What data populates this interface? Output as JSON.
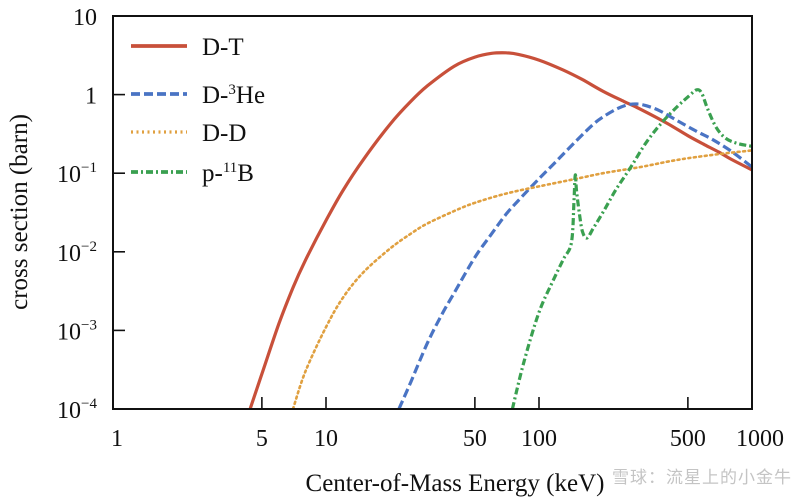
{
  "chart_data": {
    "type": "line",
    "title": "",
    "xlabel": "Center-of-Mass Energy (keV)",
    "ylabel": "cross section (barn)",
    "xscale": "log",
    "yscale": "log",
    "xlim": [
      1,
      1000
    ],
    "ylim": [
      0.0001,
      10
    ],
    "grid": false,
    "legend_position": "top-left",
    "x_ticks": [
      {
        "value": 1,
        "label": "1"
      },
      {
        "value": 5,
        "label": "5"
      },
      {
        "value": 10,
        "label": "10"
      },
      {
        "value": 50,
        "label": "50"
      },
      {
        "value": 100,
        "label": "100"
      },
      {
        "value": 500,
        "label": "500"
      },
      {
        "value": 1000,
        "label": "1000"
      }
    ],
    "y_ticks": [
      {
        "value": 10,
        "base": "10",
        "exp": ""
      },
      {
        "value": 1,
        "base": "1",
        "exp": ""
      },
      {
        "value": 0.1,
        "base": "10",
        "exp": "−1"
      },
      {
        "value": 0.01,
        "base": "10",
        "exp": "−2"
      },
      {
        "value": 0.001,
        "base": "10",
        "exp": "−3"
      },
      {
        "value": 0.0001,
        "base": "10",
        "exp": "−4"
      }
    ],
    "series": [
      {
        "name": "D-T",
        "label_main": "D-T",
        "label_sup": "",
        "label_tail": "",
        "color": "#c8503a",
        "dash": "solid",
        "points": [
          [
            4.4,
            0.0001
          ],
          [
            5,
            0.00028
          ],
          [
            6,
            0.0012
          ],
          [
            7,
            0.0035
          ],
          [
            8,
            0.0078
          ],
          [
            10,
            0.025
          ],
          [
            12,
            0.06
          ],
          [
            15,
            0.15
          ],
          [
            20,
            0.42
          ],
          [
            25,
            0.82
          ],
          [
            30,
            1.3
          ],
          [
            40,
            2.3
          ],
          [
            50,
            3.0
          ],
          [
            60,
            3.35
          ],
          [
            70,
            3.4
          ],
          [
            80,
            3.25
          ],
          [
            100,
            2.75
          ],
          [
            130,
            2.05
          ],
          [
            160,
            1.55
          ],
          [
            200,
            1.1
          ],
          [
            250,
            0.82
          ],
          [
            300,
            0.65
          ],
          [
            400,
            0.43
          ],
          [
            500,
            0.3
          ],
          [
            600,
            0.23
          ],
          [
            700,
            0.185
          ],
          [
            800,
            0.15
          ],
          [
            1000,
            0.11
          ]
        ]
      },
      {
        "name": "D-3He",
        "label_main": "D-",
        "label_sup": "3",
        "label_tail": "He",
        "color": "#4a74c4",
        "dash": "dashed",
        "points": [
          [
            22,
            0.0001
          ],
          [
            25,
            0.00022
          ],
          [
            30,
            0.0007
          ],
          [
            35,
            0.0016
          ],
          [
            40,
            0.003
          ],
          [
            50,
            0.0085
          ],
          [
            60,
            0.017
          ],
          [
            70,
            0.03
          ],
          [
            80,
            0.045
          ],
          [
            100,
            0.085
          ],
          [
            120,
            0.14
          ],
          [
            150,
            0.26
          ],
          [
            180,
            0.42
          ],
          [
            200,
            0.52
          ],
          [
            230,
            0.65
          ],
          [
            260,
            0.74
          ],
          [
            290,
            0.76
          ],
          [
            320,
            0.72
          ],
          [
            370,
            0.62
          ],
          [
            450,
            0.46
          ],
          [
            550,
            0.34
          ],
          [
            650,
            0.27
          ],
          [
            800,
            0.19
          ],
          [
            1000,
            0.12
          ]
        ]
      },
      {
        "name": "D-D",
        "label_main": "D-D",
        "label_sup": "",
        "label_tail": "",
        "color": "#e0a040",
        "dash": "dotted",
        "points": [
          [
            7,
            0.0001
          ],
          [
            8,
            0.0003
          ],
          [
            10,
            0.0011
          ],
          [
            12,
            0.0026
          ],
          [
            15,
            0.0055
          ],
          [
            20,
            0.011
          ],
          [
            25,
            0.017
          ],
          [
            30,
            0.023
          ],
          [
            40,
            0.033
          ],
          [
            50,
            0.042
          ],
          [
            70,
            0.055
          ],
          [
            100,
            0.068
          ],
          [
            150,
            0.085
          ],
          [
            200,
            0.1
          ],
          [
            300,
            0.12
          ],
          [
            400,
            0.14
          ],
          [
            500,
            0.155
          ],
          [
            700,
            0.175
          ],
          [
            1000,
            0.195
          ]
        ]
      },
      {
        "name": "p-11B",
        "label_main": "p-",
        "label_sup": "11",
        "label_tail": "B",
        "color": "#3aa050",
        "dash": "dashdot",
        "points": [
          [
            75,
            0.0001
          ],
          [
            85,
            0.0004
          ],
          [
            100,
            0.0017
          ],
          [
            115,
            0.004
          ],
          [
            130,
            0.008
          ],
          [
            142,
            0.013
          ],
          [
            146,
            0.045
          ],
          [
            148,
            0.095
          ],
          [
            150,
            0.06
          ],
          [
            155,
            0.03
          ],
          [
            160,
            0.018
          ],
          [
            168,
            0.015
          ],
          [
            180,
            0.02
          ],
          [
            200,
            0.032
          ],
          [
            230,
            0.062
          ],
          [
            270,
            0.12
          ],
          [
            320,
            0.25
          ],
          [
            380,
            0.45
          ],
          [
            450,
            0.72
          ],
          [
            510,
            0.98
          ],
          [
            550,
            1.15
          ],
          [
            580,
            1.05
          ],
          [
            620,
            0.65
          ],
          [
            680,
            0.38
          ],
          [
            750,
            0.28
          ],
          [
            850,
            0.24
          ],
          [
            1000,
            0.22
          ]
        ]
      }
    ]
  },
  "watermark": "雪球：流星上的小金牛"
}
